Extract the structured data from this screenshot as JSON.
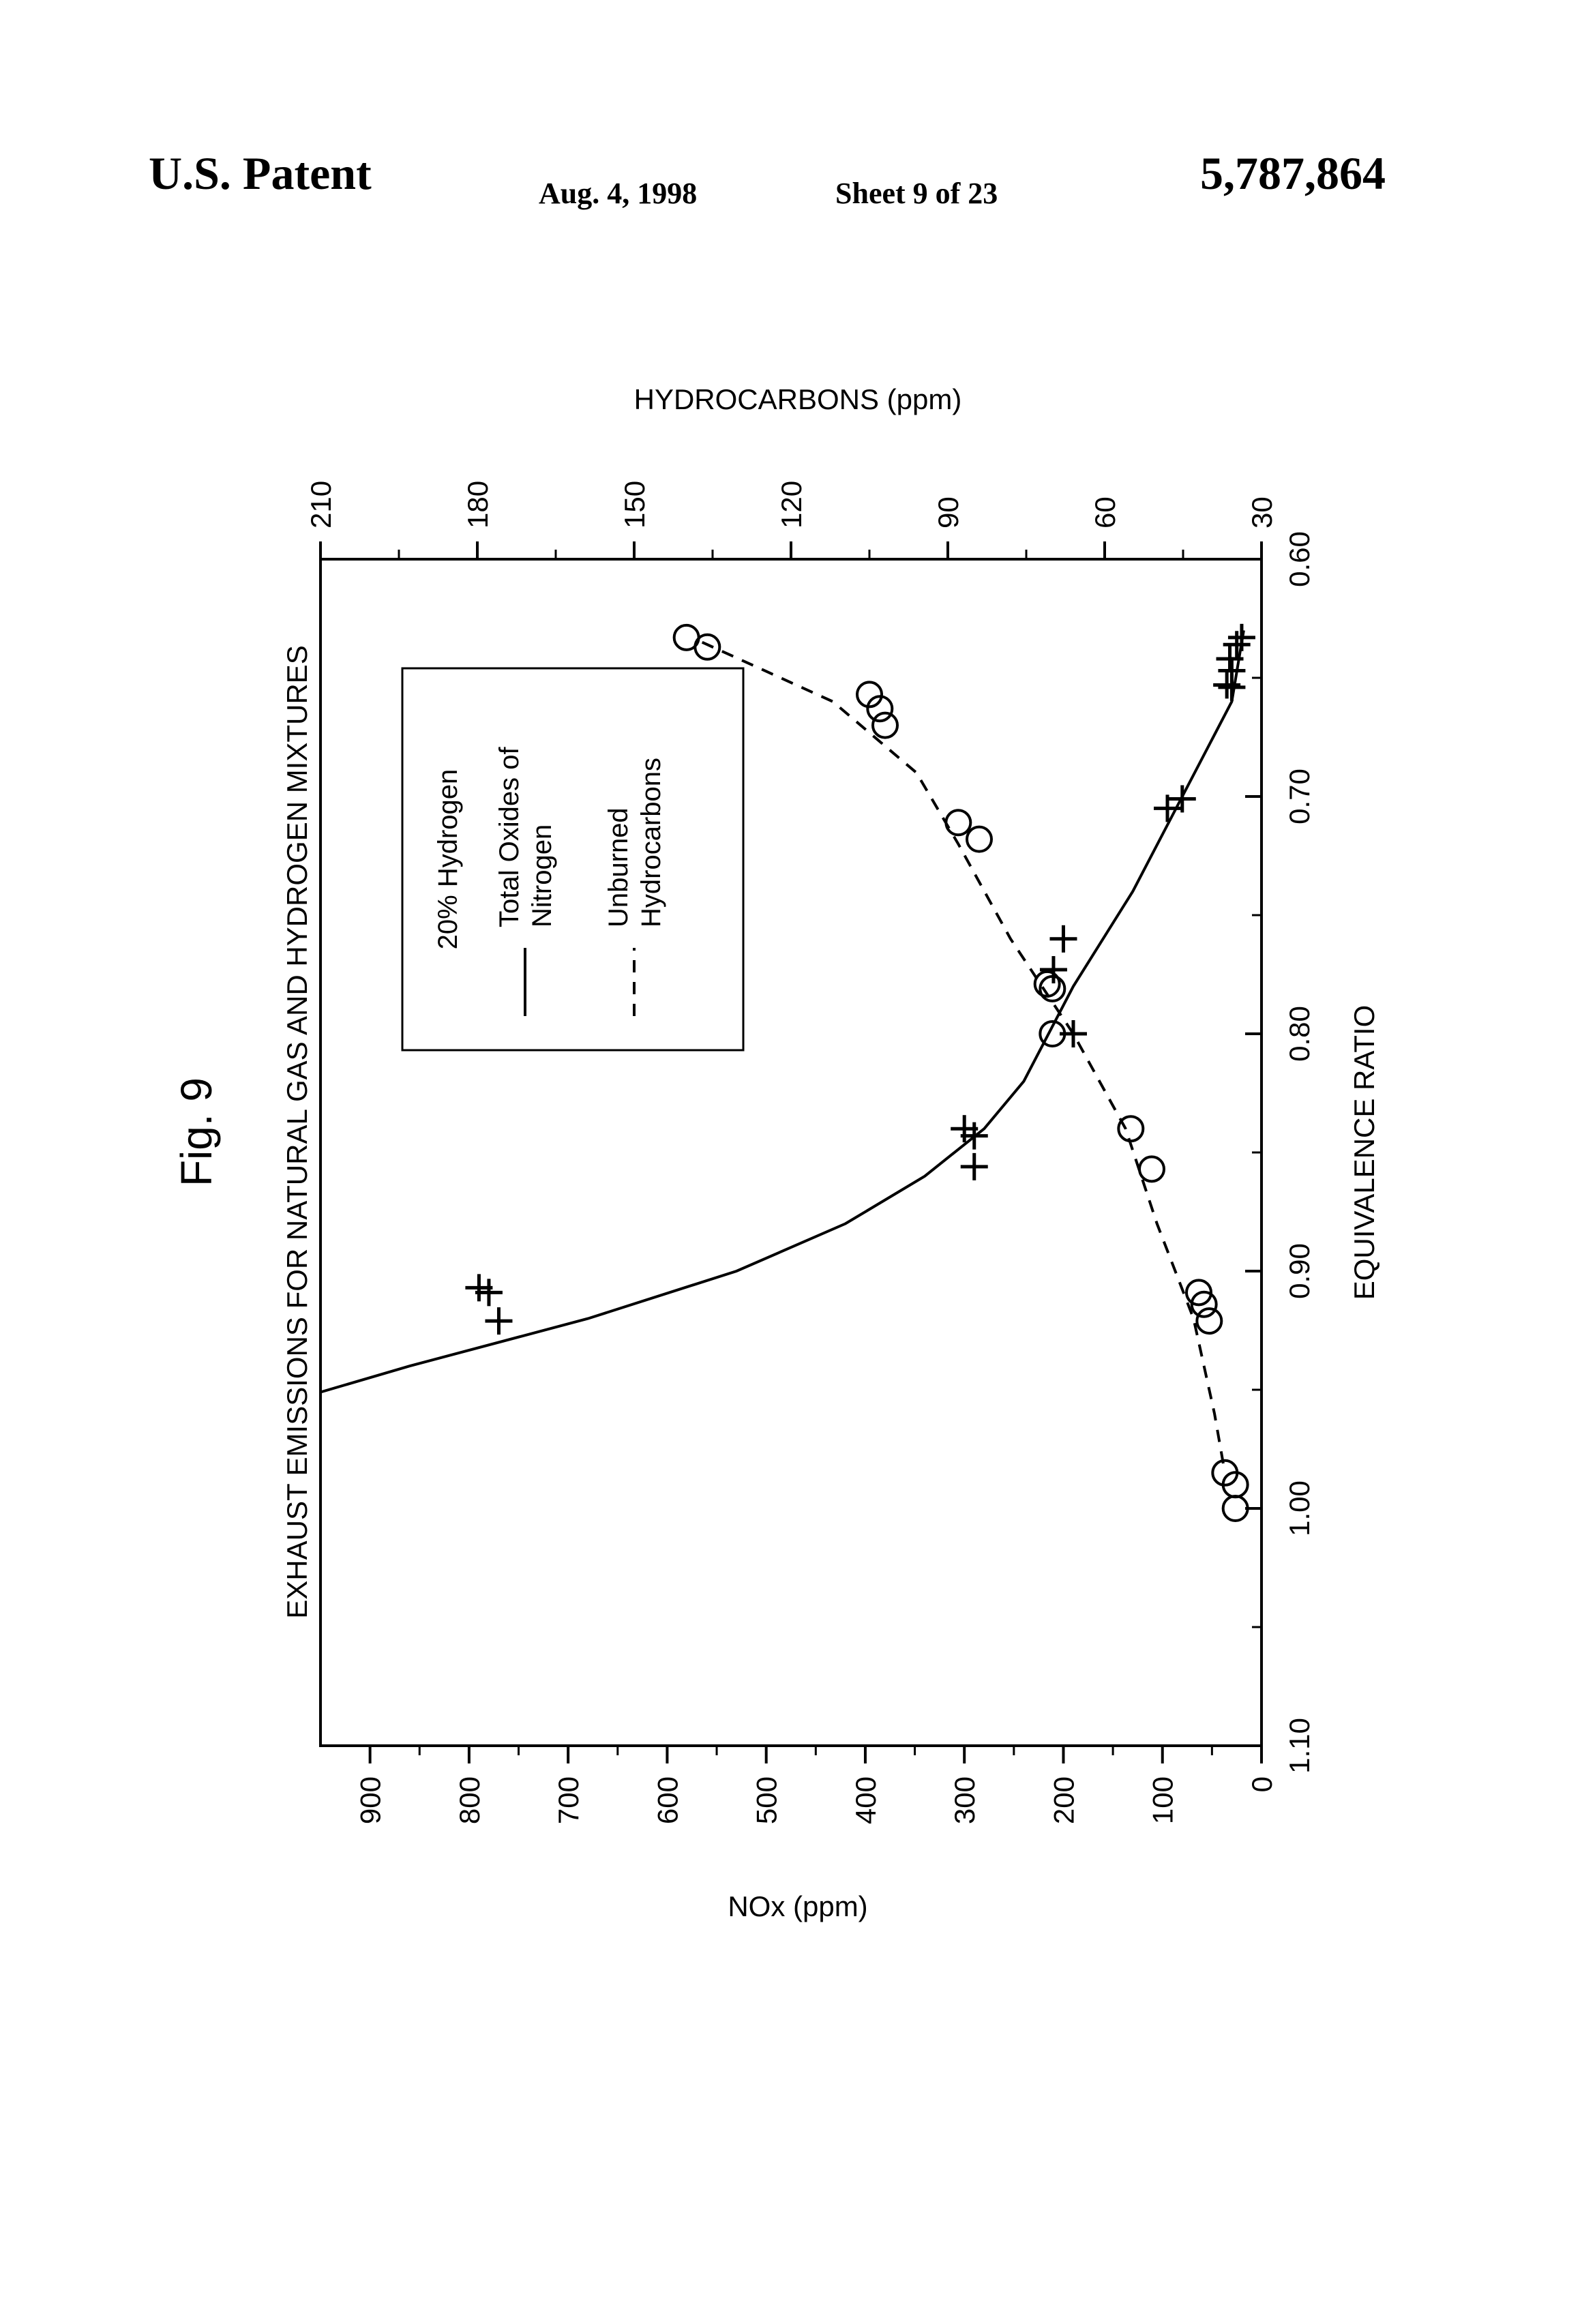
{
  "header": {
    "left": "U.S. Patent",
    "date": "Aug. 4, 1998",
    "sheet": "Sheet 9 of 23",
    "patent_number": "5,787,864"
  },
  "figure_label": "Fig. 9",
  "chart_data": {
    "type": "scatter",
    "title": "EXHAUST EMISSIONS FOR NATURAL GAS AND HYDROGEN MIXTURES",
    "xlabel": "EQUIVALENCE RATIO",
    "ylabel_left": "NOx (ppm)",
    "ylabel_right": "HYDROCARBONS (ppm)",
    "x_reversed": true,
    "xlim": [
      0.6,
      1.1
    ],
    "ylim_left": [
      0,
      950
    ],
    "ylim_right": [
      30,
      210
    ],
    "x_ticks": [
      "0.60",
      "0.70",
      "0.80",
      "0.90",
      "1.00",
      "1.10"
    ],
    "y_ticks_left": [
      "0",
      "100",
      "200",
      "300",
      "400",
      "500",
      "600",
      "700",
      "800",
      "900"
    ],
    "y_ticks_right": [
      "30",
      "60",
      "90",
      "120",
      "150",
      "180",
      "210"
    ],
    "grid": false,
    "legend": {
      "title": "20% Hydrogen",
      "entries": [
        {
          "style": "solid",
          "label_line1": "Total Oxides of",
          "label_line2": "Nitrogen"
        },
        {
          "style": "dashed",
          "label_line1": "Unburned",
          "label_line2": "Hydrocarbons"
        }
      ]
    },
    "series": [
      {
        "name": "Total Oxides of Nitrogen",
        "marker": "plus",
        "axis": "left",
        "points": [
          [
            0.633,
            20
          ],
          [
            0.636,
            25
          ],
          [
            0.647,
            30
          ],
          [
            0.654,
            30
          ],
          [
            0.653,
            35
          ],
          [
            0.642,
            32
          ],
          [
            0.701,
            80
          ],
          [
            0.705,
            95
          ],
          [
            0.76,
            200
          ],
          [
            0.773,
            210
          ],
          [
            0.8,
            190
          ],
          [
            0.84,
            300
          ],
          [
            0.843,
            290
          ],
          [
            0.856,
            290
          ],
          [
            0.907,
            790
          ],
          [
            0.909,
            780
          ],
          [
            0.921,
            770
          ]
        ],
        "fit": [
          [
            0.63,
            18
          ],
          [
            0.66,
            30
          ],
          [
            0.7,
            80
          ],
          [
            0.74,
            130
          ],
          [
            0.78,
            190
          ],
          [
            0.82,
            240
          ],
          [
            0.84,
            280
          ],
          [
            0.86,
            340
          ],
          [
            0.88,
            420
          ],
          [
            0.9,
            530
          ],
          [
            0.92,
            680
          ],
          [
            0.94,
            860
          ],
          [
            0.951,
            950
          ]
        ]
      },
      {
        "name": "Unburned Hydrocarbons",
        "marker": "circle",
        "axis": "right",
        "points": [
          [
            0.633,
            140
          ],
          [
            0.637,
            136
          ],
          [
            0.657,
            105
          ],
          [
            0.663,
            103
          ],
          [
            0.67,
            102
          ],
          [
            0.711,
            88
          ],
          [
            0.718,
            84
          ],
          [
            0.779,
            71
          ],
          [
            0.781,
            70
          ],
          [
            0.8,
            70
          ],
          [
            0.84,
            55
          ],
          [
            0.857,
            51
          ],
          [
            0.909,
            42
          ],
          [
            0.914,
            41
          ],
          [
            0.921,
            40
          ],
          [
            0.985,
            37
          ],
          [
            0.99,
            35
          ],
          [
            1.0,
            35
          ]
        ],
        "fit": [
          [
            0.635,
            137
          ],
          [
            0.66,
            112
          ],
          [
            0.69,
            96
          ],
          [
            0.72,
            88
          ],
          [
            0.76,
            78
          ],
          [
            0.8,
            66
          ],
          [
            0.84,
            56
          ],
          [
            0.88,
            50
          ],
          [
            0.92,
            43
          ],
          [
            0.96,
            39
          ],
          [
            0.985,
            37
          ]
        ]
      }
    ]
  }
}
